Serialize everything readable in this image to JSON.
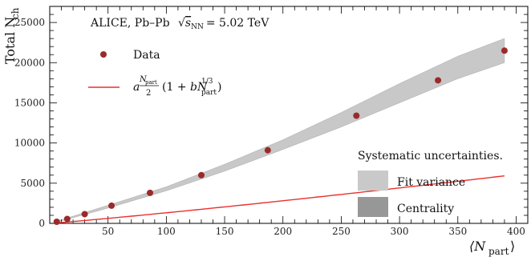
{
  "chart_data": {
    "type": "scatter",
    "annotation": {
      "prefix": "ALICE, Pb–Pb",
      "energy_value": "= 5.02 TeV"
    },
    "xlabel": "⟨N",
    "xlabel_sub": "part",
    "xlabel_close": "⟩",
    "ylabel": "Total N",
    "ylabel_sub": "ch",
    "xlim": [
      0,
      410
    ],
    "ylim": [
      0,
      27000
    ],
    "x_ticks": [
      50,
      100,
      150,
      200,
      250,
      300,
      350,
      400
    ],
    "y_ticks": [
      0,
      5000,
      10000,
      15000,
      20000,
      25000
    ],
    "series": [
      {
        "name": "Data",
        "kind": "points",
        "color": "#9b2a2a",
        "x": [
          6,
          15,
          30,
          53,
          86,
          130,
          187,
          263,
          333,
          390
        ],
        "y": [
          200,
          550,
          1150,
          2200,
          3800,
          6000,
          9100,
          13400,
          17800,
          21500
        ]
      },
      {
        "name": "fit",
        "kind": "line",
        "color": "#e8312f",
        "formula": {
          "a": 19.4,
          "b": 0.077
        }
      }
    ],
    "band": {
      "color": "#c8c8c8",
      "x": [
        6,
        50,
        100,
        150,
        200,
        250,
        300,
        350,
        390
      ],
      "low": [
        150,
        1900,
        4050,
        6500,
        9200,
        12000,
        15000,
        18000,
        20000
      ],
      "high": [
        260,
        2250,
        4550,
        7350,
        10400,
        13800,
        17400,
        20800,
        23000
      ]
    },
    "legend": {
      "data_label": "Data",
      "fit_label": "a",
      "systematics_title": "Systematic uncertainties.",
      "items": [
        {
          "label": "Fit variance",
          "color": "#c9c9c9"
        },
        {
          "label": "Centrality",
          "color": "#979797"
        }
      ]
    }
  }
}
